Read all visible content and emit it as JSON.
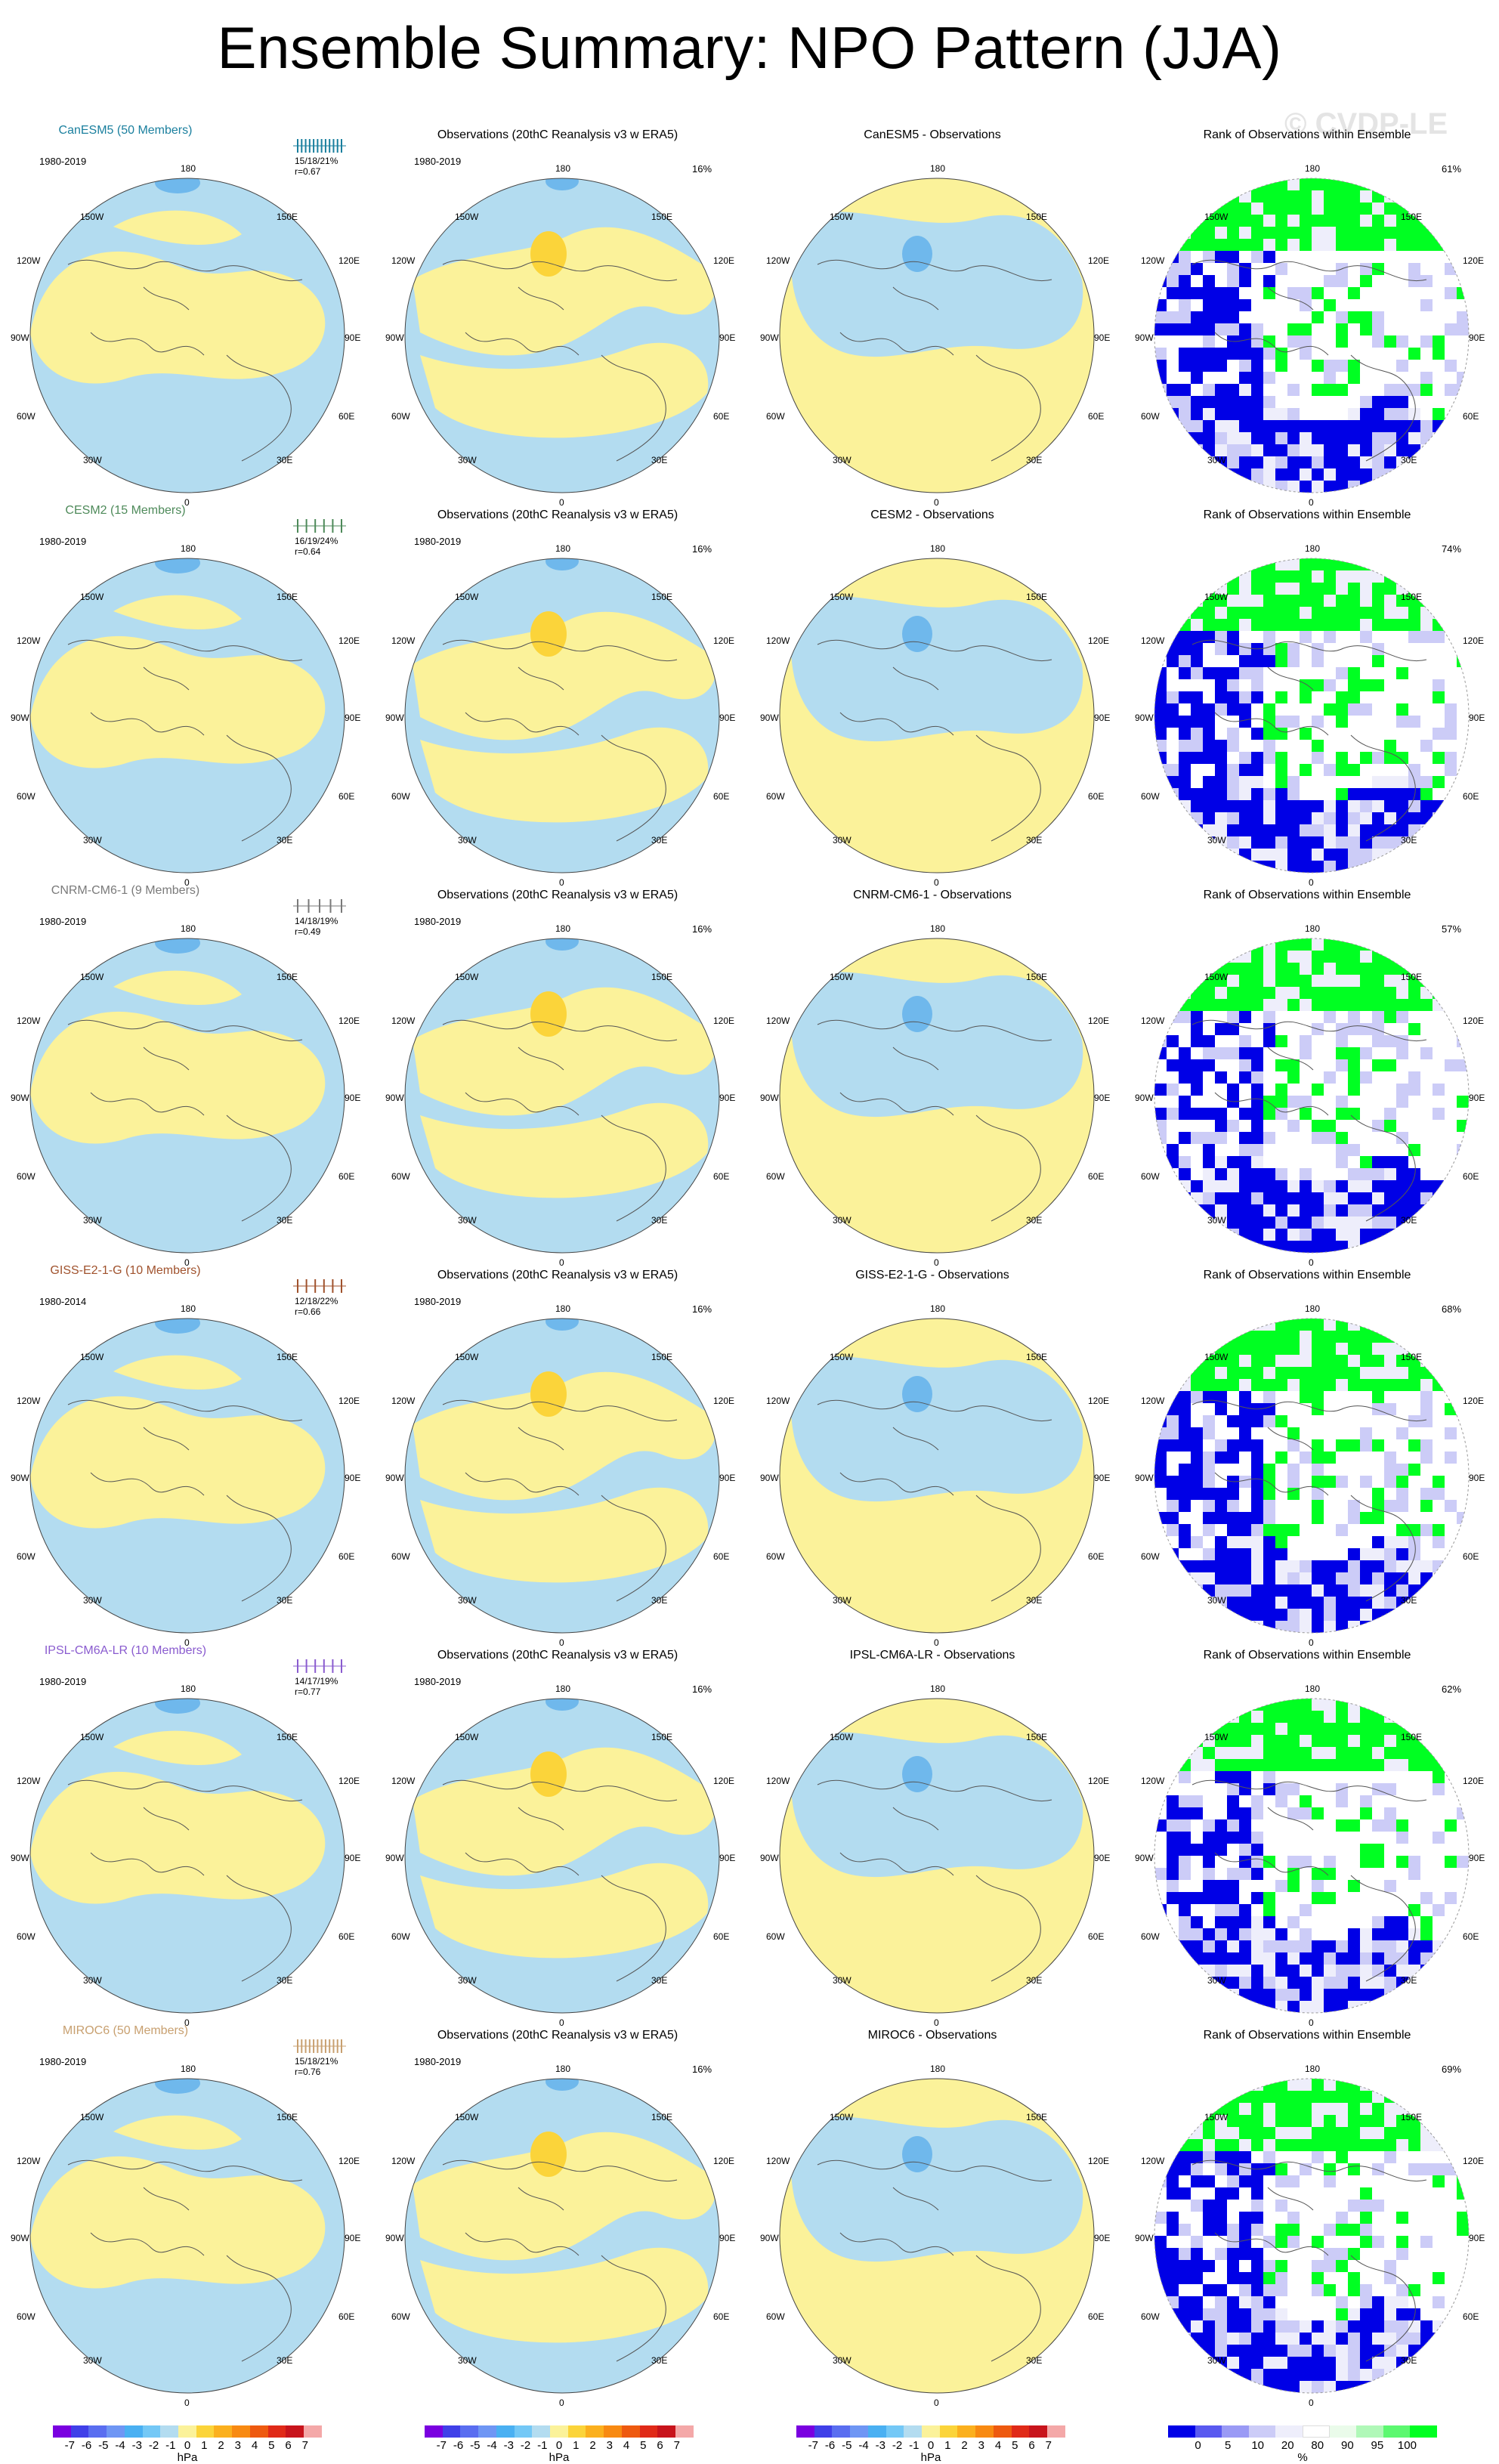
{
  "title": "Ensemble Summary: NPO Pattern (JJA)",
  "watermark": "© CVDP-LE",
  "colors": {
    "neg": "#b3dcf0",
    "pos": "#fbf29a",
    "negDeep": "#6fb8ec",
    "posDeep": "#fbd43a",
    "rankLow": "#0000e6",
    "rankMid": "#ccccf7",
    "rankLight": "#eeeefb",
    "rankHigh": "#00ff22"
  },
  "longitude_labels": {
    "top": "180",
    "bottom": "0",
    "upperLeft": "150W",
    "upperRight": "150E",
    "left1": "120W",
    "right1": "120E",
    "left2": "90W",
    "right2": "90E",
    "left3": "60W",
    "right3": "60E",
    "lowerLeft": "30W",
    "lowerRight": "30E"
  },
  "rows": [
    {
      "model": {
        "title": "CanESM5 (50 Members)",
        "color": "#1a7f9e",
        "period": "1980-2019",
        "stats1": "15/18/21%",
        "stats2": "r=0.67",
        "ticks": 12
      },
      "obs": {
        "title": "Observations (20thC Reanalysis v3 w ERA5)",
        "period": "1980-2019",
        "pct": "16%"
      },
      "diff": {
        "title": "CanESM5 - Observations"
      },
      "rank": {
        "title": "Rank of Observations within Ensemble",
        "pct": "61%"
      }
    },
    {
      "model": {
        "title": "CESM2 (15 Members)",
        "color": "#4e8a5a",
        "period": "1980-2019",
        "stats1": "16/19/24%",
        "stats2": "r=0.64",
        "ticks": 6
      },
      "obs": {
        "title": "Observations (20thC Reanalysis v3 w ERA5)",
        "period": "1980-2019",
        "pct": "16%"
      },
      "diff": {
        "title": "CESM2 - Observations"
      },
      "rank": {
        "title": "Rank of Observations within Ensemble",
        "pct": "74%"
      }
    },
    {
      "model": {
        "title": "CNRM-CM6-1 (9 Members)",
        "color": "#7a7a7a",
        "period": "1980-2019",
        "stats1": "14/18/19%",
        "stats2": "r=0.49",
        "ticks": 5
      },
      "obs": {
        "title": "Observations (20thC Reanalysis v3 w ERA5)",
        "period": "1980-2019",
        "pct": "16%"
      },
      "diff": {
        "title": "CNRM-CM6-1 - Observations"
      },
      "rank": {
        "title": "Rank of Observations within Ensemble",
        "pct": "57%"
      }
    },
    {
      "model": {
        "title": "GISS-E2-1-G (10 Members)",
        "color": "#a0522d",
        "period": "1980-2014",
        "stats1": "12/18/22%",
        "stats2": "r=0.66",
        "ticks": 6
      },
      "obs": {
        "title": "Observations (20thC Reanalysis v3 w ERA5)",
        "period": "1980-2019",
        "pct": "16%"
      },
      "diff": {
        "title": "GISS-E2-1-G - Observations"
      },
      "rank": {
        "title": "Rank of Observations within Ensemble",
        "pct": "68%"
      }
    },
    {
      "model": {
        "title": "IPSL-CM6A-LR (10 Members)",
        "color": "#8a5ccf",
        "period": "1980-2019",
        "stats1": "14/17/19%",
        "stats2": "r=0.77",
        "ticks": 6
      },
      "obs": {
        "title": "Observations (20thC Reanalysis v3 w ERA5)",
        "period": "1980-2019",
        "pct": "16%"
      },
      "diff": {
        "title": "IPSL-CM6A-LR - Observations"
      },
      "rank": {
        "title": "Rank of Observations within Ensemble",
        "pct": "62%"
      }
    },
    {
      "model": {
        "title": "MIROC6 (50 Members)",
        "color": "#c8a070",
        "period": "1980-2019",
        "stats1": "15/18/21%",
        "stats2": "r=0.76",
        "ticks": 12
      },
      "obs": {
        "title": "Observations (20thC Reanalysis v3 w ERA5)",
        "period": "1980-2019",
        "pct": "16%"
      },
      "diff": {
        "title": "MIROC6 - Observations"
      },
      "rank": {
        "title": "Rank of Observations within Ensemble",
        "pct": "69%"
      }
    }
  ],
  "colorbar_hpa": {
    "colors": [
      "#7a00e0",
      "#4040e8",
      "#5a6ef0",
      "#6f96f4",
      "#4ab0f2",
      "#74c8f6",
      "#b3dcf0",
      "#fbf29a",
      "#fbd43a",
      "#fbb01e",
      "#f88a12",
      "#ee5a10",
      "#e02a18",
      "#c8141c",
      "#f4a8a8"
    ],
    "labels": [
      "-7",
      "-6",
      "-5",
      "-4",
      "-3",
      "-2",
      "-1",
      "0",
      "1",
      "2",
      "3",
      "4",
      "5",
      "6",
      "7"
    ],
    "unit": "hPa"
  },
  "colorbar_rank": {
    "colors": [
      "#0000e6",
      "#5a5af0",
      "#9a9af5",
      "#ccccf7",
      "#eeeefb",
      "#ffffff",
      "#eafbea",
      "#b0f8b8",
      "#5cf870",
      "#00ff22"
    ],
    "labels": [
      "0",
      "5",
      "10",
      "20",
      "80",
      "90",
      "95",
      "100"
    ],
    "unit": "%"
  }
}
